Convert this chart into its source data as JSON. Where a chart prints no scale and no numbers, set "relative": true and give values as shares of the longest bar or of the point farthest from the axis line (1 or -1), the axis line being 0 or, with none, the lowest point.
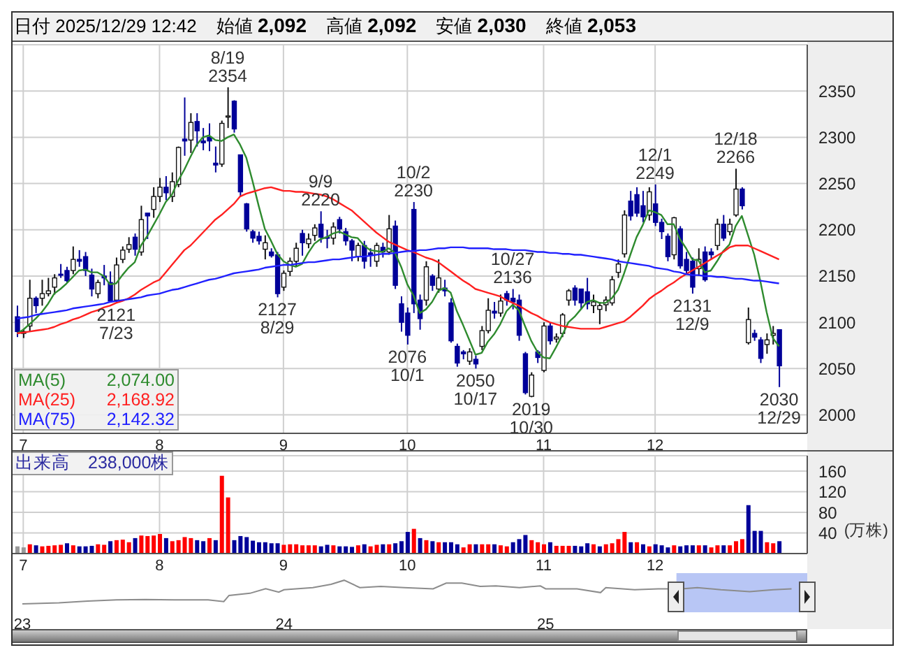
{
  "chart_data": [
    {
      "type": "candlestick",
      "title": "日付 2025/12/29 12:42",
      "grid": true,
      "colors": [
        "#000099",
        "#ffffff",
        "#ffffff",
        "#000099",
        "#ffffff",
        "#ffffff",
        "#ffffff",
        "#000099",
        "#000099",
        "#ffffff",
        "#000099",
        "#000099",
        "#000099",
        "#ffffff",
        "#000099",
        "#000099",
        "#ffffff",
        "#ffffff",
        "#ffffff",
        "#000099",
        "#ffffff",
        "#000099",
        "#ffffff",
        "#ffffff",
        "#000099",
        "#ffffff",
        "#ffffff",
        "#000099",
        "#ffffff",
        "#000099",
        "#000099",
        "#000099",
        "#000099",
        "#ffffff",
        "#ffffff",
        "#000099",
        "#000099",
        "#000099",
        "#000099",
        "#000099",
        "#ffffff",
        "#000099",
        "#000099",
        "#ffffff",
        "#ffffff",
        "#ffffff",
        "#000099",
        "#ffffff",
        "#ffffff",
        "#000099",
        "#000099",
        "#ffffff",
        "#000099",
        "#000099",
        "#000099",
        "#ffffff",
        "#000099",
        "#000099",
        "#ffffff",
        "#000099",
        "#ffffff",
        "#000099",
        "#000099",
        "#000099",
        "#000099",
        "#000099",
        "#ffffff",
        "#000099",
        "#ffffff",
        "#000099",
        "#000099",
        "#000099",
        "#000099",
        "#ffffff",
        "#000099",
        "#ffffff",
        "#ffffff",
        "#000099",
        "#ffffff",
        "#000099",
        "#000099",
        "#000099",
        "#000099",
        "#ffffff",
        "#000099",
        "#ffffff",
        "#000099",
        "#ffffff",
        "#ffffff",
        "#ffffff",
        "#000099",
        "#000099",
        "#000099",
        "#ffffff",
        "#ffffff",
        "#ffffff",
        "#ffffff",
        "#ffffff",
        "#ffffff",
        "#000099",
        "#000099",
        "#000099",
        "#ffffff",
        "#000099",
        "#000099",
        "#000099",
        "#ffffff",
        "#000099",
        "#000099",
        "#000099",
        "#ffffff",
        "#000099",
        "#000099",
        "#ffffff",
        "#000099",
        "#ffffff",
        "#ffffff",
        "#000099",
        "#ffffff",
        "#000099",
        "#000099",
        "#ffffff",
        "#ffffff",
        "#000099"
      ],
      "annotations": [
        "始値 2,092",
        "高値 2,092",
        "安値 2,030",
        "終値 2,053",
        {
          "text": "8/19\n2354",
          "y": 2354
        },
        {
          "text": "2121\n7/23",
          "y": 2121
        },
        {
          "text": "2127\n8/29",
          "y": 2127
        },
        {
          "text": "9/9\n2220",
          "y": 2220
        },
        {
          "text": "10/2\n2230",
          "y": 2230
        },
        {
          "text": "2076\n10/1",
          "y": 2076
        },
        {
          "text": "2050\n10/17",
          "y": 2050
        },
        {
          "text": "10/27\n2136",
          "y": 2136
        },
        {
          "text": "2019\n10/30",
          "y": 2019
        },
        {
          "text": "12/1\n2249",
          "y": 2249
        },
        {
          "text": "2131\n12/9",
          "y": 2131
        },
        {
          "text": "12/18\n2266",
          "y": 2266
        },
        {
          "text": "2030\n12/29",
          "y": 2030
        }
      ],
      "categories": [
        null,
        "7",
        null,
        null,
        null,
        null,
        null,
        null,
        null,
        null,
        null,
        null,
        null,
        null,
        null,
        null,
        null,
        null,
        null,
        null,
        null,
        null,
        null,
        "8",
        null,
        null,
        null,
        null,
        null,
        null,
        null,
        null,
        null,
        null,
        null,
        null,
        null,
        null,
        null,
        null,
        null,
        null,
        null,
        "9",
        null,
        null,
        null,
        null,
        null,
        null,
        null,
        null,
        null,
        null,
        null,
        null,
        null,
        null,
        null,
        null,
        null,
        null,
        null,
        "10",
        null,
        null,
        null,
        null,
        null,
        null,
        null,
        null,
        null,
        null,
        null,
        null,
        null,
        null,
        null,
        null,
        null,
        null,
        null,
        null,
        null,
        "11",
        null,
        null,
        null,
        null,
        null,
        null,
        null,
        null,
        null,
        null,
        null,
        null,
        null,
        null,
        null,
        null,
        null,
        "12",
        null,
        null,
        null,
        null,
        null,
        null,
        null,
        null,
        null,
        null,
        null,
        null,
        null,
        null,
        null,
        null,
        null,
        null,
        null,
        null
      ],
      "ylim": [
        1980,
        2400
      ],
      "yticks": [
        2000,
        2050,
        2100,
        2150,
        2200,
        2250,
        2300,
        2350
      ],
      "ohlc": [
        [
          2106,
          2118,
          2084,
          2090
        ],
        [
          2088,
          2092,
          2083,
          2090
        ],
        [
          2096,
          2146,
          2090,
          2126
        ],
        [
          2126,
          2128,
          2110,
          2118
        ],
        [
          2126,
          2146,
          2118,
          2131
        ],
        [
          2131,
          2148,
          2128,
          2134
        ],
        [
          2138,
          2152,
          2130,
          2148
        ],
        [
          2152,
          2163,
          2148,
          2151
        ],
        [
          2156,
          2160,
          2143,
          2145
        ],
        [
          2156,
          2182,
          2152,
          2168
        ],
        [
          2168,
          2178,
          2160,
          2166
        ],
        [
          2171,
          2176,
          2150,
          2156
        ],
        [
          2151,
          2158,
          2128,
          2136
        ],
        [
          2131,
          2146,
          2126,
          2143
        ],
        [
          2150,
          2162,
          2140,
          2148
        ],
        [
          2143,
          2155,
          2122,
          2123
        ],
        [
          2124,
          2170,
          2121,
          2162
        ],
        [
          2168,
          2182,
          2164,
          2178
        ],
        [
          2179,
          2192,
          2175,
          2184
        ],
        [
          2192,
          2196,
          2172,
          2179
        ],
        [
          2176,
          2226,
          2172,
          2211
        ],
        [
          2218,
          2218,
          2190,
          2215
        ],
        [
          2222,
          2246,
          2213,
          2236
        ],
        [
          2236,
          2256,
          2230,
          2246
        ],
        [
          2246,
          2258,
          2232,
          2240
        ],
        [
          2236,
          2262,
          2230,
          2252
        ],
        [
          2249,
          2290,
          2246,
          2289
        ],
        [
          2298,
          2343,
          2280,
          2296
        ],
        [
          2297,
          2326,
          2283,
          2316
        ],
        [
          2317,
          2326,
          2290,
          2307
        ],
        [
          2296,
          2310,
          2286,
          2294
        ],
        [
          2300,
          2315,
          2285,
          2296
        ],
        [
          2272,
          2290,
          2262,
          2270
        ],
        [
          2271,
          2318,
          2268,
          2315
        ],
        [
          2323,
          2354,
          2310,
          2323
        ],
        [
          2339,
          2340,
          2305,
          2309
        ],
        [
          2281,
          2281,
          2236,
          2241
        ],
        [
          2228,
          2229,
          2198,
          2201
        ],
        [
          2198,
          2200,
          2186,
          2191
        ],
        [
          2193,
          2198,
          2184,
          2188
        ],
        [
          2179,
          2194,
          2168,
          2186
        ],
        [
          2176,
          2180,
          2170,
          2172
        ],
        [
          2173,
          2176,
          2127,
          2131
        ],
        [
          2138,
          2156,
          2134,
          2153
        ],
        [
          2155,
          2170,
          2150,
          2166
        ],
        [
          2166,
          2186,
          2160,
          2180
        ],
        [
          2196,
          2200,
          2172,
          2186
        ],
        [
          2185,
          2196,
          2180,
          2190
        ],
        [
          2194,
          2206,
          2188,
          2202
        ],
        [
          2206,
          2220,
          2186,
          2192
        ],
        [
          2192,
          2200,
          2180,
          2191
        ],
        [
          2191,
          2208,
          2184,
          2203
        ],
        [
          2211,
          2214,
          2196,
          2201
        ],
        [
          2198,
          2202,
          2183,
          2188
        ],
        [
          2188,
          2190,
          2166,
          2178
        ],
        [
          2171,
          2186,
          2166,
          2183
        ],
        [
          2183,
          2188,
          2158,
          2166
        ],
        [
          2175,
          2180,
          2160,
          2173
        ],
        [
          2166,
          2186,
          2160,
          2183
        ],
        [
          2181,
          2186,
          2170,
          2176
        ],
        [
          2176,
          2216,
          2173,
          2201
        ],
        [
          2204,
          2210,
          2136,
          2140
        ],
        [
          2120,
          2128,
          2090,
          2100
        ],
        [
          2110,
          2116,
          2076,
          2086
        ],
        [
          2222,
          2230,
          2110,
          2120
        ],
        [
          2124,
          2130,
          2092,
          2104
        ],
        [
          2124,
          2166,
          2118,
          2160
        ],
        [
          2150,
          2152,
          2134,
          2140
        ],
        [
          2136,
          2168,
          2132,
          2148
        ],
        [
          2137,
          2146,
          2128,
          2134
        ],
        [
          2121,
          2126,
          2078,
          2080
        ],
        [
          2074,
          2077,
          2052,
          2056
        ],
        [
          2068,
          2070,
          2060,
          2066
        ],
        [
          2058,
          2072,
          2054,
          2068
        ],
        [
          2060,
          2064,
          2050,
          2055
        ],
        [
          2074,
          2096,
          2070,
          2091
        ],
        [
          2091,
          2126,
          2088,
          2113
        ],
        [
          2112,
          2122,
          2104,
          2110
        ],
        [
          2110,
          2130,
          2106,
          2123
        ],
        [
          2131,
          2134,
          2118,
          2124
        ],
        [
          2126,
          2136,
          2114,
          2122
        ],
        [
          2124,
          2130,
          2080,
          2086
        ],
        [
          2066,
          2068,
          2022,
          2024
        ],
        [
          2020,
          2046,
          2019,
          2043
        ],
        [
          2068,
          2070,
          2056,
          2062
        ],
        [
          2048,
          2100,
          2046,
          2096
        ],
        [
          2096,
          2100,
          2076,
          2080
        ],
        [
          2082,
          2088,
          2078,
          2084
        ],
        [
          2088,
          2110,
          2084,
          2108
        ],
        [
          2124,
          2136,
          2118,
          2134
        ],
        [
          2137,
          2140,
          2118,
          2124
        ],
        [
          2136,
          2136,
          2114,
          2121
        ],
        [
          2133,
          2148,
          2114,
          2120
        ],
        [
          2118,
          2130,
          2110,
          2122
        ],
        [
          2114,
          2122,
          2098,
          2118
        ],
        [
          2119,
          2128,
          2112,
          2124
        ],
        [
          2121,
          2150,
          2118,
          2146
        ],
        [
          2154,
          2168,
          2148,
          2163
        ],
        [
          2174,
          2221,
          2170,
          2216
        ],
        [
          2231,
          2242,
          2210,
          2215
        ],
        [
          2238,
          2246,
          2214,
          2218
        ],
        [
          2226,
          2242,
          2208,
          2214
        ],
        [
          2216,
          2246,
          2210,
          2241
        ],
        [
          2228,
          2249,
          2204,
          2208
        ],
        [
          2208,
          2212,
          2190,
          2198
        ],
        [
          2193,
          2196,
          2166,
          2171
        ],
        [
          2173,
          2214,
          2168,
          2213
        ],
        [
          2201,
          2204,
          2158,
          2161
        ],
        [
          2168,
          2176,
          2152,
          2156
        ],
        [
          2166,
          2170,
          2131,
          2138
        ],
        [
          2158,
          2180,
          2150,
          2168
        ],
        [
          2176,
          2182,
          2144,
          2146
        ],
        [
          2176,
          2180,
          2168,
          2173
        ],
        [
          2183,
          2212,
          2178,
          2206
        ],
        [
          2206,
          2216,
          2188,
          2191
        ],
        [
          2198,
          2212,
          2194,
          2206
        ],
        [
          2216,
          2266,
          2214,
          2244
        ],
        [
          2244,
          2246,
          2222,
          2226
        ],
        [
          2078,
          2116,
          2076,
          2103
        ],
        [
          2088,
          2092,
          2080,
          2084
        ],
        [
          2081,
          2084,
          2056,
          2061
        ],
        [
          2076,
          2088,
          2066,
          2081
        ],
        [
          2086,
          2096,
          2076,
          2088
        ],
        [
          2092,
          2092,
          2030,
          2053
        ]
      ],
      "series": [
        {
          "type": "line",
          "name": "MA(5) 2,074.00",
          "color": "#2e8b2e",
          "values": [
            2088,
            2092,
            2098,
            2104,
            2111,
            2120,
            2131,
            2136,
            2142,
            2149,
            2156,
            2157,
            2154,
            2154,
            2150,
            2141,
            2142,
            2151,
            2159,
            2165,
            2183,
            2193,
            2205,
            2217,
            2230,
            2238,
            2253,
            2265,
            2279,
            2292,
            2300,
            2302,
            2297,
            2296,
            2300,
            2303,
            2292,
            2278,
            2253,
            2226,
            2201,
            2188,
            2174,
            2166,
            2162,
            2160,
            2163,
            2175,
            2185,
            2190,
            2192,
            2196,
            2198,
            2195,
            2192,
            2191,
            2183,
            2178,
            2177,
            2176,
            2180,
            2175,
            2160,
            2141,
            2129,
            2110,
            2114,
            2122,
            2134,
            2137,
            2132,
            2112,
            2097,
            2081,
            2065,
            2067,
            2079,
            2087,
            2098,
            2112,
            2119,
            2113,
            2096,
            2080,
            2068,
            2062,
            2061,
            2073,
            2086,
            2100,
            2106,
            2114,
            2122,
            2124,
            2121,
            2121,
            2126,
            2135,
            2153,
            2173,
            2192,
            2205,
            2221,
            2219,
            2216,
            2206,
            2206,
            2190,
            2180,
            2168,
            2167,
            2154,
            2156,
            2166,
            2177,
            2184,
            2204,
            2215,
            2194,
            2173,
            2144,
            2111,
            2083,
            2074
          ]
        },
        {
          "type": "line",
          "name": "MA(25) 2,168.92",
          "color": "#ff2020",
          "values": [
            2088,
            2089,
            2090,
            2091,
            2092,
            2093,
            2095,
            2098,
            2100,
            2103,
            2105,
            2108,
            2111,
            2113,
            2116,
            2118,
            2121,
            2123,
            2126,
            2130,
            2135,
            2139,
            2143,
            2146,
            2154,
            2162,
            2170,
            2178,
            2183,
            2190,
            2197,
            2204,
            2211,
            2216,
            2222,
            2228,
            2236,
            2239,
            2241,
            2243,
            2245,
            2246,
            2244,
            2242,
            2242,
            2241,
            2241,
            2240,
            2239,
            2238,
            2236,
            2233,
            2229,
            2225,
            2221,
            2215,
            2209,
            2203,
            2197,
            2192,
            2187,
            2184,
            2181,
            2178,
            2176,
            2173,
            2170,
            2168,
            2165,
            2160,
            2155,
            2150,
            2145,
            2141,
            2136,
            2134,
            2132,
            2130,
            2128,
            2124,
            2121,
            2118,
            2114,
            2110,
            2107,
            2103,
            2100,
            2098,
            2096,
            2095,
            2094,
            2093,
            2093,
            2093,
            2093,
            2095,
            2097,
            2099,
            2101,
            2106,
            2112,
            2118,
            2125,
            2130,
            2134,
            2139,
            2143,
            2148,
            2152,
            2156,
            2160,
            2164,
            2168,
            2172,
            2176,
            2181,
            2183,
            2183,
            2183,
            2180,
            2177,
            2174,
            2171,
            2168
          ]
        },
        {
          "type": "line",
          "name": "MA(75) 2,142.32",
          "color": "#2020ff",
          "values": [
            2104,
            2105,
            2106,
            2108,
            2109,
            2110,
            2111,
            2112,
            2113,
            2115,
            2116,
            2117,
            2118,
            2119,
            2120,
            2122,
            2123,
            2124,
            2125,
            2126,
            2127,
            2129,
            2130,
            2131,
            2133,
            2135,
            2136,
            2138,
            2140,
            2142,
            2144,
            2146,
            2147,
            2149,
            2151,
            2153,
            2154,
            2155,
            2156,
            2157,
            2159,
            2160,
            2161,
            2162,
            2162,
            2163,
            2164,
            2165,
            2165,
            2166,
            2167,
            2168,
            2168,
            2169,
            2170,
            2171,
            2171,
            2172,
            2173,
            2174,
            2174,
            2175,
            2176,
            2177,
            2177,
            2178,
            2178,
            2179,
            2180,
            2180,
            2181,
            2181,
            2181,
            2180,
            2180,
            2180,
            2180,
            2179,
            2179,
            2179,
            2178,
            2178,
            2178,
            2177,
            2176,
            2176,
            2175,
            2175,
            2174,
            2174,
            2173,
            2173,
            2172,
            2171,
            2170,
            2169,
            2168,
            2166,
            2165,
            2164,
            2163,
            2162,
            2161,
            2159,
            2158,
            2157,
            2155,
            2154,
            2152,
            2151,
            2151,
            2150,
            2150,
            2149,
            2149,
            2148,
            2147,
            2147,
            2146,
            2145,
            2145,
            2144,
            2143,
            2142
          ]
        }
      ]
    },
    {
      "type": "bar",
      "title": "出来高　238,000株",
      "ylabel": "(万株)",
      "grid": true,
      "categories": [
        null,
        "7",
        null,
        null,
        null,
        null,
        null,
        null,
        null,
        null,
        null,
        null,
        null,
        null,
        null,
        null,
        null,
        null,
        null,
        null,
        null,
        null,
        null,
        "8",
        null,
        null,
        null,
        null,
        null,
        null,
        null,
        null,
        null,
        null,
        null,
        null,
        null,
        null,
        null,
        null,
        null,
        null,
        null,
        "9",
        null,
        null,
        null,
        null,
        null,
        null,
        null,
        null,
        null,
        null,
        null,
        null,
        null,
        null,
        null,
        null,
        null,
        null,
        null,
        "10",
        null,
        null,
        null,
        null,
        null,
        null,
        null,
        null,
        null,
        null,
        null,
        null,
        null,
        null,
        null,
        null,
        null,
        null,
        null,
        null,
        null,
        "11",
        null,
        null,
        null,
        null,
        null,
        null,
        null,
        null,
        null,
        null,
        null,
        null,
        null,
        null,
        null,
        null,
        null,
        "12",
        null,
        null,
        null,
        null,
        null,
        null,
        null,
        null,
        null,
        null,
        null,
        null,
        null,
        null,
        null,
        null,
        null,
        null,
        null,
        null
      ],
      "ylim": [
        0,
        190
      ],
      "yticks": [
        40,
        80,
        120,
        160
      ],
      "values": [
        14,
        12,
        18,
        16,
        14,
        15,
        16,
        17,
        20,
        16,
        14,
        14,
        15,
        18,
        17,
        24,
        26,
        27,
        22,
        30,
        35,
        34,
        35,
        38,
        30,
        24,
        26,
        32,
        30,
        26,
        24,
        30,
        26,
        151,
        109,
        26,
        34,
        32,
        25,
        22,
        22,
        20,
        20,
        17,
        18,
        18,
        16,
        16,
        16,
        14,
        17,
        16,
        14,
        14,
        13,
        16,
        18,
        14,
        17,
        18,
        18,
        20,
        24,
        42,
        48,
        30,
        26,
        24,
        22,
        22,
        22,
        18,
        12,
        18,
        18,
        18,
        18,
        18,
        16,
        14,
        22,
        28,
        36,
        26,
        22,
        18,
        22,
        15,
        15,
        15,
        15,
        14,
        20,
        18,
        14,
        18,
        20,
        28,
        42,
        22,
        22,
        18,
        14,
        18,
        16,
        12,
        16,
        14,
        16,
        16,
        16,
        16,
        12,
        16,
        16,
        16,
        24,
        28,
        94,
        44,
        44,
        22,
        20,
        24
      ],
      "colors": [
        "#999999",
        "#999999",
        "#ff0000",
        "#000099",
        "#ff0000",
        "#ff0000",
        "#ff0000",
        "#ff0000",
        "#000099",
        "#ff0000",
        "#000099",
        "#000099",
        "#000099",
        "#ff0000",
        "#ff0000",
        "#000099",
        "#ff0000",
        "#ff0000",
        "#ff0000",
        "#000099",
        "#ff0000",
        "#ff0000",
        "#ff0000",
        "#ff0000",
        "#000099",
        "#ff0000",
        "#ff0000",
        "#ff0000",
        "#ff0000",
        "#000099",
        "#000099",
        "#ff0000",
        "#000099",
        "#ff0000",
        "#ff0000",
        "#000099",
        "#000099",
        "#000099",
        "#000099",
        "#000099",
        "#000099",
        "#000099",
        "#000099",
        "#ff0000",
        "#ff0000",
        "#ff0000",
        "#ff0000",
        "#ff0000",
        "#ff0000",
        "#000099",
        "#000099",
        "#ff0000",
        "#000099",
        "#000099",
        "#000099",
        "#ff0000",
        "#000099",
        "#ff0000",
        "#ff0000",
        "#000099",
        "#ff0000",
        "#000099",
        "#000099",
        "#000099",
        "#ff0000",
        "#000099",
        "#ff0000",
        "#000099",
        "#ff0000",
        "#000099",
        "#000099",
        "#000099",
        "#ff0000",
        "#ff0000",
        "#000099",
        "#ff0000",
        "#ff0000",
        "#000099",
        "#ff0000",
        "#ff0000",
        "#000099",
        "#000099",
        "#000099",
        "#ff0000",
        "#ff0000",
        "#ff0000",
        "#000099",
        "#ff0000",
        "#ff0000",
        "#ff0000",
        "#000099",
        "#000099",
        "#000099",
        "#ff0000",
        "#000099",
        "#ff0000",
        "#ff0000",
        "#ff0000",
        "#ff0000",
        "#000099",
        "#ff0000",
        "#000099",
        "#ff0000",
        "#000099",
        "#000099",
        "#000099",
        "#ff0000",
        "#000099",
        "#000099",
        "#000099",
        "#ff0000",
        "#000099",
        "#ff0000",
        "#ff0000",
        "#000099",
        "#ff0000",
        "#ff0000",
        "#ff0000",
        "#000099",
        "#000099",
        "#000099",
        "#ff0000",
        "#ff0000",
        "#000099"
      ]
    },
    {
      "type": "line",
      "relative": true,
      "xlim": [
        2023,
        2026
      ],
      "xticks": [
        {
          "value": 2023,
          "label": "23"
        },
        {
          "value": 2024,
          "label": "24"
        },
        {
          "value": 2025,
          "label": "25"
        }
      ],
      "bands": [
        {
          "axis": "x",
          "from": 2025.5,
          "to": 2026,
          "color": "#b8c6f5"
        }
      ],
      "x": [
        2023.0,
        2023.14,
        2023.25,
        2023.36,
        2023.47,
        2023.58,
        2023.71,
        2023.77,
        2023.79,
        2023.87,
        2023.93,
        2023.98,
        2024.0,
        2024.11,
        2024.18,
        2024.23,
        2024.29,
        2024.37,
        2024.46,
        2024.57,
        2024.62,
        2024.68,
        2024.75,
        2024.81,
        2024.9,
        2024.98,
        2025.0,
        2025.12,
        2025.21,
        2025.23,
        2025.34,
        2025.43,
        2025.52,
        2025.58,
        2025.67,
        2025.78,
        2025.87,
        2025.94
      ],
      "series": [
        {
          "color": "#8c8c8c",
          "values": [
            0,
            0.05,
            0.12,
            0.17,
            0.19,
            0.17,
            0.17,
            0.1,
            0.36,
            0.45,
            0.64,
            0.5,
            0.6,
            0.69,
            0.83,
            1,
            0.69,
            0.74,
            0.69,
            0.64,
            0.88,
            0.88,
            0.74,
            0.76,
            0.69,
            0.76,
            0.64,
            0.64,
            0.48,
            0.69,
            0.6,
            0.64,
            0.64,
            0.69,
            0.6,
            0.52,
            0.6,
            0.64
          ]
        }
      ]
    }
  ]
}
